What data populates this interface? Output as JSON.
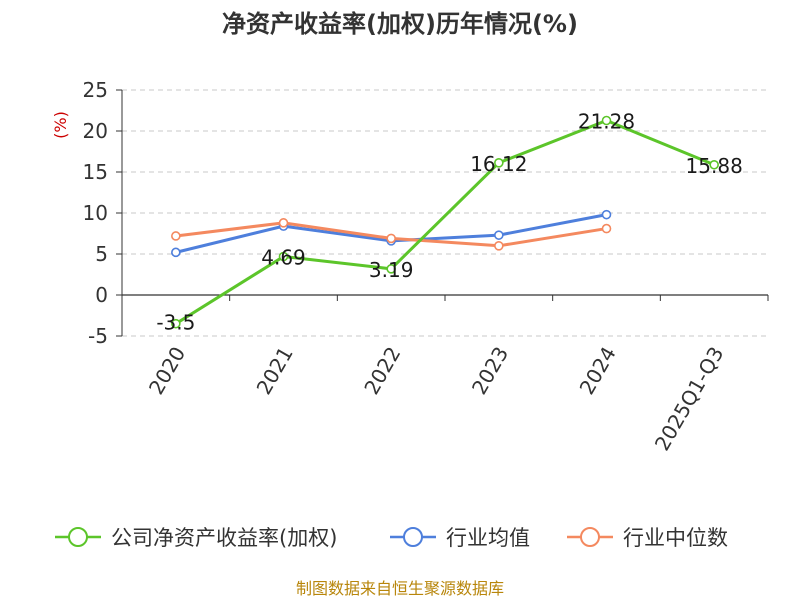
{
  "chart_data": {
    "type": "line",
    "title": "净资产收益率(加权)历年情况(%)",
    "ylabel": "(%)",
    "xlabel": "",
    "categories": [
      "2020",
      "2021",
      "2022",
      "2023",
      "2024",
      "2025Q1-Q3"
    ],
    "yticks": [
      "25",
      "20",
      "15",
      "10",
      "5",
      "0",
      "-5"
    ],
    "ylim": [
      -5,
      25
    ],
    "grid": true,
    "legend_position": "bottom",
    "series": [
      {
        "name": "公司净资产收益率(加权)",
        "color": "#5cc52a",
        "values": [
          -3.5,
          4.69,
          3.19,
          16.12,
          21.28,
          15.88
        ],
        "labels": [
          "-3.5",
          "4.69",
          "3.19",
          "16.12",
          "21.28",
          "15.88"
        ]
      },
      {
        "name": "行业均值",
        "color": "#4e7fdc",
        "values": [
          5.2,
          8.4,
          6.6,
          7.3,
          9.8,
          null
        ]
      },
      {
        "name": "行业中位数",
        "color": "#f4895f",
        "values": [
          7.2,
          8.8,
          6.9,
          6.0,
          8.1,
          null
        ]
      }
    ],
    "source": "制图数据来自恒生聚源数据库"
  }
}
